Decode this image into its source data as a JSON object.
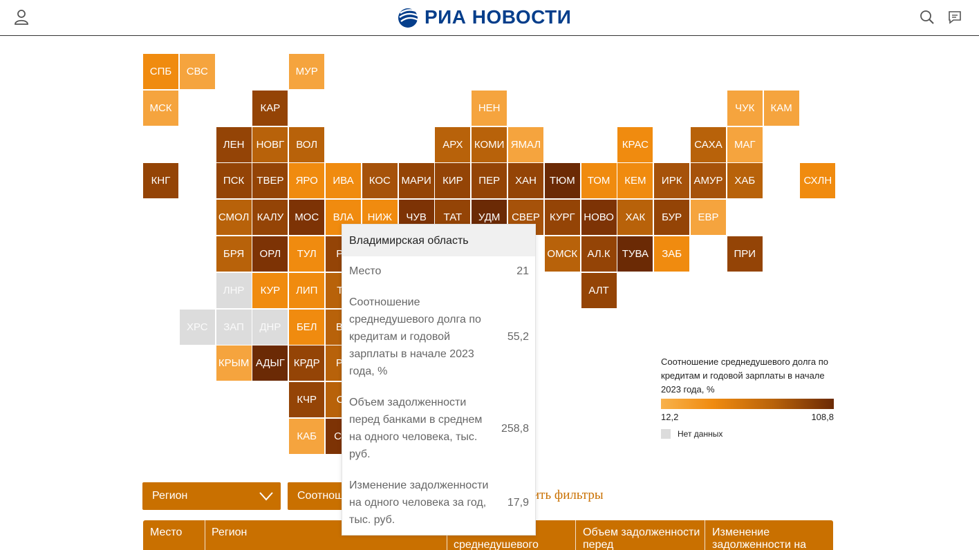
{
  "header": {
    "logo_text": "РИА НОВОСТИ",
    "logo_icon": "ria-globe-icon",
    "user_icon": "user-icon",
    "search_icon": "search-icon",
    "chat_icon": "chat-icon",
    "brand_color": "#053e8b"
  },
  "map": {
    "tiles": [
      {
        "label": "СПБ",
        "color": "#f08b0f"
      },
      {
        "label": "СВС",
        "color": "#f5a43e"
      },
      {
        "label": "МУР",
        "color": "#f5a43e"
      },
      {
        "label": "МСК",
        "color": "#f5a43e"
      },
      {
        "label": "КАР",
        "color": "#944406"
      },
      {
        "label": "НЕН",
        "color": "#f5a43e"
      },
      {
        "label": "ЧУК",
        "color": "#f5a43e"
      },
      {
        "label": "КАМ",
        "color": "#f5a43e"
      },
      {
        "label": "ЛЕН",
        "color": "#944406"
      },
      {
        "label": "НОВГ",
        "color": "#b8620a"
      },
      {
        "label": "ВОЛ",
        "color": "#b8620a"
      },
      {
        "label": "АРХ",
        "color": "#b8620a"
      },
      {
        "label": "КОМИ",
        "color": "#b8620a"
      },
      {
        "label": "ЯМАЛ",
        "color": "#f5a43e"
      },
      {
        "label": "КРАС",
        "color": "#f08b0f"
      },
      {
        "label": "САХА",
        "color": "#b8620a"
      },
      {
        "label": "МАГ",
        "color": "#f5a43e"
      },
      {
        "label": "КНГ",
        "color": "#944406"
      },
      {
        "label": "ПСК",
        "color": "#944406"
      },
      {
        "label": "ТВЕР",
        "color": "#944406"
      },
      {
        "label": "ЯРО",
        "color": "#f08b0f"
      },
      {
        "label": "ИВА",
        "color": "#f08b0f"
      },
      {
        "label": "КОС",
        "color": "#a6520a"
      },
      {
        "label": "МАРИ",
        "color": "#944406"
      },
      {
        "label": "КИР",
        "color": "#944406"
      },
      {
        "label": "ПЕР",
        "color": "#944406"
      },
      {
        "label": "ХАН",
        "color": "#944406"
      },
      {
        "label": "ТЮМ",
        "color": "#6b2a05"
      },
      {
        "label": "ТОМ",
        "color": "#f08b0f"
      },
      {
        "label": "КЕМ",
        "color": "#f08b0f"
      },
      {
        "label": "ИРК",
        "color": "#a6520a"
      },
      {
        "label": "АМУР",
        "color": "#a6520a"
      },
      {
        "label": "ХАБ",
        "color": "#b8620a"
      },
      {
        "label": "СХЛН",
        "color": "#f08b0f"
      },
      {
        "label": "СМОЛ",
        "color": "#b8620a"
      },
      {
        "label": "КАЛУ",
        "color": "#944406"
      },
      {
        "label": "МОС",
        "color": "#7d3305"
      },
      {
        "label": "ВЛА",
        "color": "#f08b0f"
      },
      {
        "label": "НИЖ",
        "color": "#f08b0f"
      },
      {
        "label": "ЧУВ",
        "color": "#7d3305"
      },
      {
        "label": "ТАТ",
        "color": "#944406"
      },
      {
        "label": "УДМ",
        "color": "#6b2a05"
      },
      {
        "label": "СВЕР",
        "color": "#a6520a"
      },
      {
        "label": "КУРГ",
        "color": "#944406"
      },
      {
        "label": "НОВО",
        "color": "#7d3305"
      },
      {
        "label": "ХАК",
        "color": "#b8620a"
      },
      {
        "label": "БУР",
        "color": "#944406"
      },
      {
        "label": "ЕВР",
        "color": "#f5a43e"
      },
      {
        "label": "БРЯ",
        "color": "#b8620a"
      },
      {
        "label": "ОРЛ",
        "color": "#7d3305"
      },
      {
        "label": "ТУЛ",
        "color": "#f08b0f"
      },
      {
        "label": "РЯ",
        "color": "#944406"
      },
      {
        "label": "ОМСК",
        "color": "#b8620a"
      },
      {
        "label": "АЛ.К",
        "color": "#944406"
      },
      {
        "label": "ТУВА",
        "color": "#6b2a05"
      },
      {
        "label": "ЗАБ",
        "color": "#f08b0f"
      },
      {
        "label": "ПРИ",
        "color": "#944406"
      },
      {
        "label": "ЛНР",
        "color": "#dcdcdc"
      },
      {
        "label": "КУР",
        "color": "#f08b0f"
      },
      {
        "label": "ЛИП",
        "color": "#f08b0f"
      },
      {
        "label": "ТА",
        "color": "#b8620a"
      },
      {
        "label": "АЛТ",
        "color": "#944406"
      },
      {
        "label": "ХРС",
        "color": "#dcdcdc"
      },
      {
        "label": "ЗАП",
        "color": "#dcdcdc"
      },
      {
        "label": "ДНР",
        "color": "#dcdcdc"
      },
      {
        "label": "БЕЛ",
        "color": "#f08b0f"
      },
      {
        "label": "ВО",
        "color": "#b8620a"
      },
      {
        "label": "КРЫМ",
        "color": "#f5a43e"
      },
      {
        "label": "АДЫГ",
        "color": "#6b2a05"
      },
      {
        "label": "КРДР",
        "color": "#944406"
      },
      {
        "label": "РО",
        "color": "#b8620a"
      },
      {
        "label": "КЧР",
        "color": "#944406"
      },
      {
        "label": "СТ",
        "color": "#b8620a"
      },
      {
        "label": "КАБ",
        "color": "#f5a43e"
      },
      {
        "label": "С.О",
        "color": "#7d3305"
      }
    ]
  },
  "legend": {
    "title": "Соотношение среднедушевого долга по кредитам и годовой зарплаты в начале 2023 года, %",
    "min": "12,2",
    "max": "108,8",
    "nodata_label": "Нет данных"
  },
  "filters": {
    "region_label": "Регион",
    "ratio_label": "Соотнош",
    "reset_label": "ить фильтры"
  },
  "table": {
    "headers": [
      "Место",
      "Регион",
      "Соотношение среднедушевого",
      "Объем задолженности перед",
      "Изменение задолженности на"
    ]
  },
  "tooltip": {
    "title": "Владимирская область",
    "rows": [
      {
        "label": "Место",
        "value": "21"
      },
      {
        "label": "Соотношение среднедушевого долга по кредитам и годовой зарплаты в начале 2023 года, %",
        "value": "55,2"
      },
      {
        "label": "Объем задолженности перед банками в среднем на одного человека, тыс. руб.",
        "value": "258,8"
      },
      {
        "label": "Изменение задолженности на одного человека за год, тыс. руб.",
        "value": "17,9"
      }
    ]
  }
}
